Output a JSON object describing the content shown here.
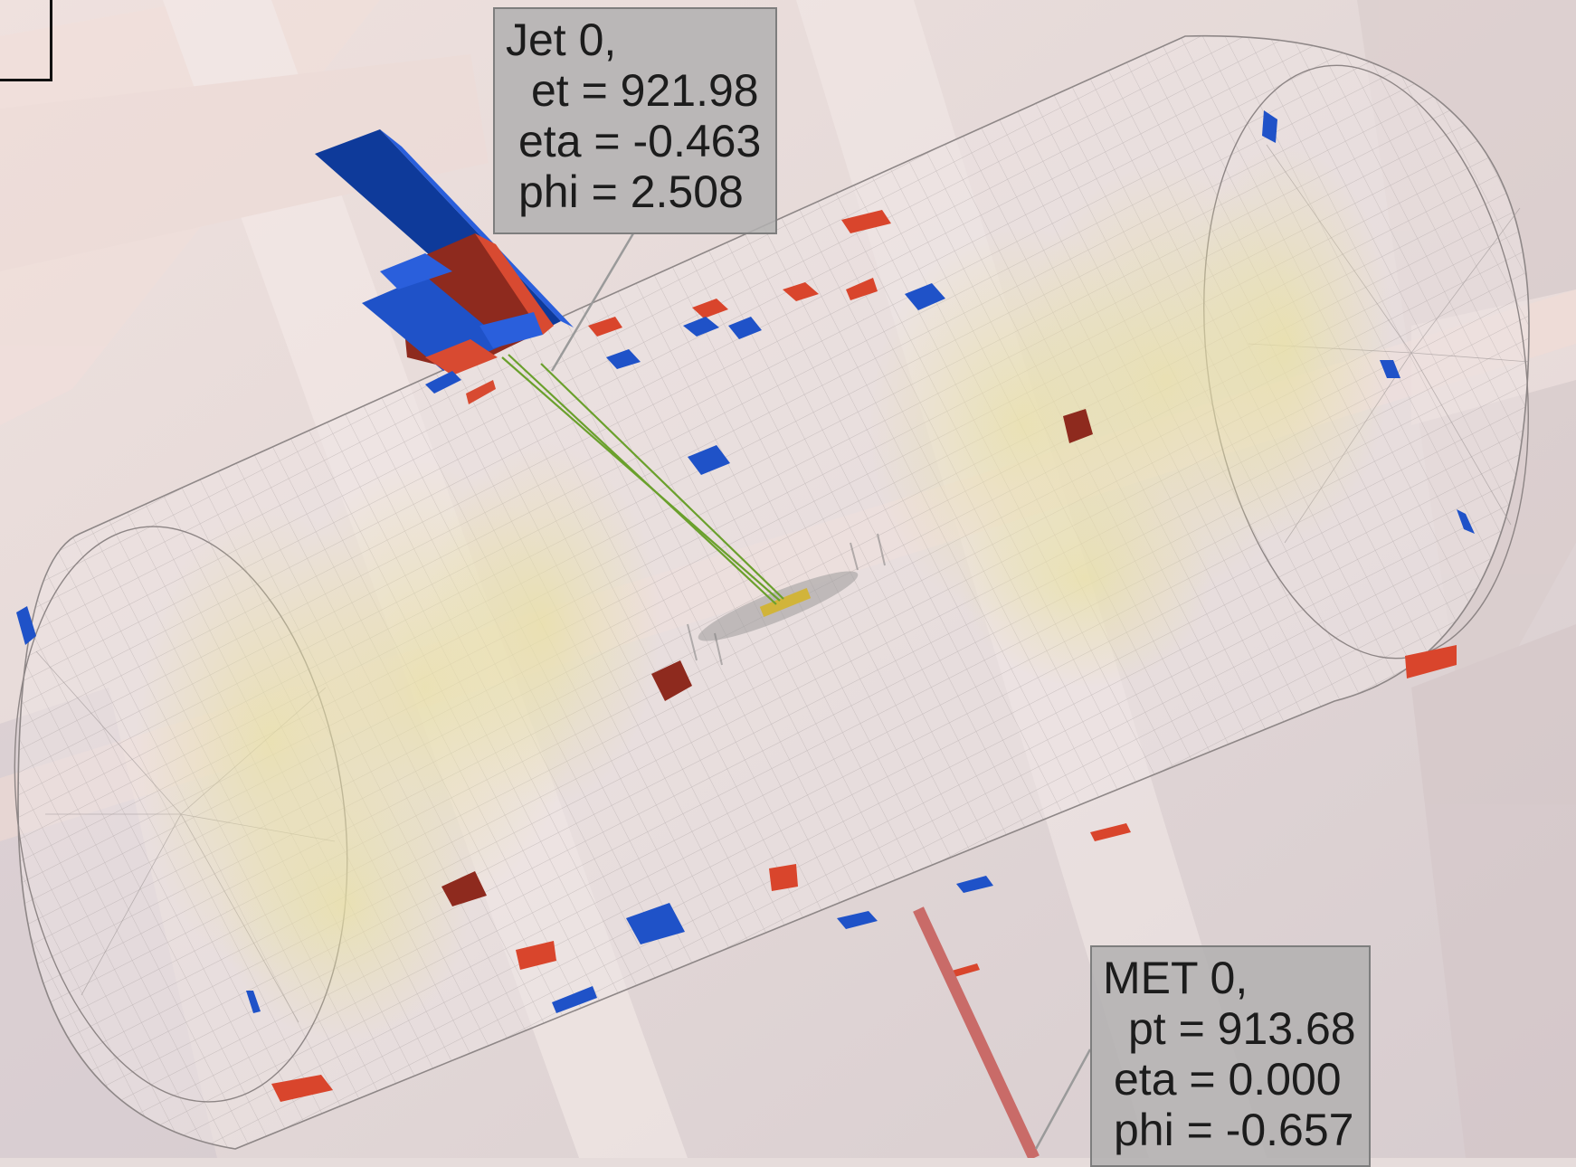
{
  "jet_label": {
    "title": "Jet 0,",
    "et": "et = 921.98",
    "eta": "eta = -0.463",
    "phi": "phi = 2.508"
  },
  "met_label": {
    "title": "MET 0,",
    "pt": "pt = 913.68",
    "eta": "eta = 0.000",
    "phi": "phi = -0.657"
  },
  "colors": {
    "background": "#e6dcdb",
    "em_deposit": "#d9452c",
    "hadronic_deposit": "#1f52c8",
    "track": "#6aa02c",
    "met_arrow": "#c96b68",
    "calorimeter_cells": "#e8dfa8"
  }
}
